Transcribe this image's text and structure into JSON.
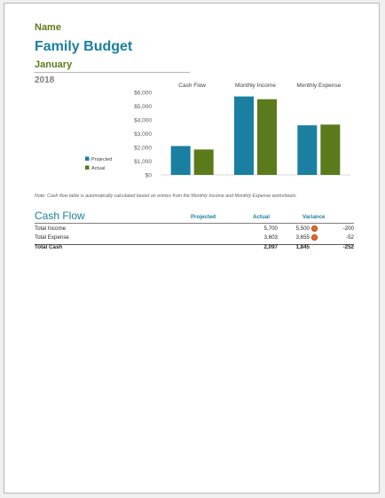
{
  "header": {
    "name": "Name",
    "title": "Family Budget",
    "month": "January",
    "year": "2018"
  },
  "chart_data": {
    "type": "bar",
    "categories": [
      "Cash Flow",
      "Monthly Income",
      "Monthly Expense"
    ],
    "series": [
      {
        "name": "Projected",
        "values": [
          2097,
          5700,
          3603
        ],
        "color": "#1a7fa0"
      },
      {
        "name": "Actual",
        "values": [
          1845,
          5500,
          3655
        ],
        "color": "#5b7a1c"
      }
    ],
    "ylim": [
      0,
      6000
    ],
    "yticks": [
      0,
      1000,
      2000,
      3000,
      4000,
      5000,
      6000
    ],
    "ytick_labels": [
      "$0",
      "$1,000",
      "$2,000",
      "$3,000",
      "$4,000",
      "$5,000",
      "$6,000"
    ],
    "legend_placement": "left",
    "grid": false
  },
  "note": "Note: Cash flow table is automatically calculated based on entries from the Monthly Income and Monthly Expense worksheets.",
  "cash_flow": {
    "title": "Cash Flow",
    "headers": {
      "projected": "Projected",
      "actual": "Actual",
      "variance": "Variance"
    },
    "rows": [
      {
        "label": "Total Income",
        "projected": "5,700",
        "actual": "5,500",
        "variance": "-200",
        "indicator": "red-circle-icon"
      },
      {
        "label": "Total Expense",
        "projected": "3,603",
        "actual": "3,655",
        "variance": "-52",
        "indicator": "red-circle-icon"
      },
      {
        "label": "Total Cash",
        "projected": "2,097",
        "actual": "1,845",
        "variance": "-252"
      }
    ]
  }
}
